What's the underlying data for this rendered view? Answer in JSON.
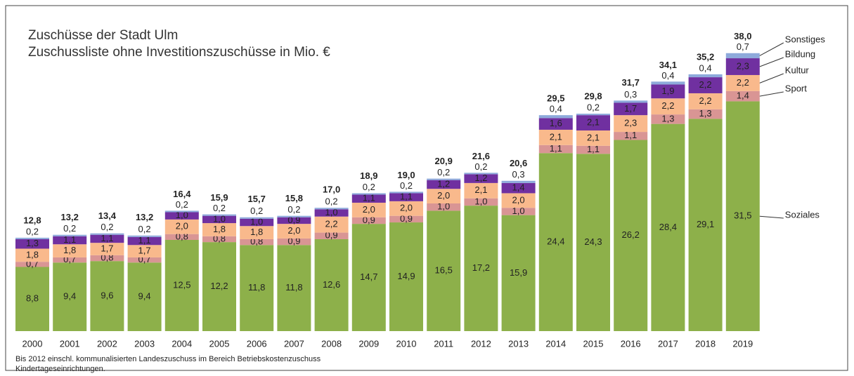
{
  "chart_data": {
    "type": "stacked_bar",
    "title": [
      "Zuschüsse der Stadt Ulm",
      "Zuschussliste ohne Investitionszuschüsse in Mio. €"
    ],
    "categories": [
      "2000",
      "2001",
      "2002",
      "2003",
      "2004",
      "2005",
      "2006",
      "2007",
      "2008",
      "2009",
      "2010",
      "2011",
      "2012",
      "2013",
      "2014",
      "2015",
      "2016",
      "2017",
      "2018",
      "2019"
    ],
    "series": [
      {
        "name": "Soziales",
        "color": "#8db04a",
        "values": [
          8.8,
          9.4,
          9.6,
          9.4,
          12.5,
          12.2,
          11.8,
          11.8,
          12.6,
          14.7,
          14.9,
          16.5,
          17.2,
          15.9,
          24.4,
          24.3,
          26.2,
          28.4,
          29.1,
          31.5
        ],
        "value_labels": [
          "8,8",
          "9,4",
          "9,6",
          "9,4",
          "12,5",
          "12,2",
          "11,8",
          "11,8",
          "12,6",
          "14,7",
          "14,9",
          "16,5",
          "17,2",
          "15,9",
          "24,4",
          "24,3",
          "26,2",
          "28,4",
          "29,1",
          "31,5"
        ]
      },
      {
        "name": "Sport",
        "color": "#d99594",
        "values": [
          0.7,
          0.7,
          0.8,
          0.7,
          0.8,
          0.8,
          0.8,
          0.9,
          0.9,
          0.9,
          0.9,
          1.0,
          1.0,
          1.0,
          1.1,
          1.1,
          1.1,
          1.3,
          1.3,
          1.4
        ],
        "value_labels": [
          "0,7",
          "0,7",
          "0,8",
          "0,7",
          "0,8",
          "0,8",
          "0,8",
          "0,9",
          "0,9",
          "0,9",
          "0,9",
          "1,0",
          "1,0",
          "1,0",
          "1,1",
          "1,1",
          "1,1",
          "1,3",
          "1,3",
          "1,4"
        ]
      },
      {
        "name": "Kultur",
        "color": "#f9b98c",
        "values": [
          1.8,
          1.8,
          1.7,
          1.7,
          2.0,
          1.8,
          1.8,
          2.0,
          2.2,
          2.0,
          2.0,
          2.0,
          2.1,
          2.0,
          2.1,
          2.1,
          2.3,
          2.2,
          2.2,
          2.2
        ],
        "value_labels": [
          "1,8",
          "1,8",
          "1,7",
          "1,7",
          "2,0",
          "1,8",
          "1,8",
          "2,0",
          "2,2",
          "2,0",
          "2,0",
          "2,0",
          "2,1",
          "2,0",
          "2,1",
          "2,1",
          "2,3",
          "2,2",
          "2,2",
          "2,2"
        ]
      },
      {
        "name": "Bildung",
        "color": "#7030a0",
        "values": [
          1.3,
          1.1,
          1.1,
          1.1,
          1.0,
          1.0,
          1.0,
          0.9,
          1.0,
          1.1,
          1.1,
          1.2,
          1.2,
          1.4,
          1.6,
          2.1,
          1.7,
          1.9,
          2.2,
          2.3
        ],
        "value_labels": [
          "1,3",
          "1,1",
          "1,1",
          "1,1",
          "1,0",
          "1,0",
          "1,0",
          "0,9",
          "1,0",
          "1,1",
          "1,1",
          "1,2",
          "1,2",
          "1,4",
          "1,6",
          "2,1",
          "1,7",
          "1,9",
          "2,2",
          "2,3"
        ]
      },
      {
        "name": "Sonstiges",
        "color": "#8eaadb",
        "values": [
          0.2,
          0.2,
          0.2,
          0.2,
          0.2,
          0.2,
          0.2,
          0.2,
          0.2,
          0.2,
          0.2,
          0.2,
          0.2,
          0.3,
          0.4,
          0.2,
          0.3,
          0.4,
          0.4,
          0.7
        ],
        "value_labels": [
          "0,2",
          "0,2",
          "0,2",
          "0,2",
          "0,2",
          "0,2",
          "0,2",
          "0,2",
          "0,2",
          "0,2",
          "0,2",
          "0,2",
          "0,2",
          "0,3",
          "0,4",
          "0,2",
          "0,3",
          "0,4",
          "0,4",
          "0,7"
        ]
      }
    ],
    "totals": {
      "values": [
        12.8,
        13.2,
        13.4,
        13.2,
        16.4,
        15.9,
        15.7,
        15.8,
        17.0,
        18.9,
        19.0,
        20.9,
        21.6,
        20.6,
        29.5,
        29.8,
        31.7,
        34.1,
        35.2,
        38.0
      ],
      "value_labels": [
        "12,8",
        "13,2",
        "13,4",
        "13,2",
        "16,4",
        "15,9",
        "15,7",
        "15,8",
        "17,0",
        "18,9",
        "19,0",
        "20,9",
        "21,6",
        "20,6",
        "29,5",
        "29,8",
        "31,7",
        "34,1",
        "35,2",
        "38,0"
      ]
    },
    "ylim": [
      0,
      40
    ],
    "note": [
      "Bis 2012 einschl. kommunalisierten Landeszuschuss im Bereich Betriebskostenzuschuss",
      "Kindertageseinrichtungen."
    ]
  }
}
